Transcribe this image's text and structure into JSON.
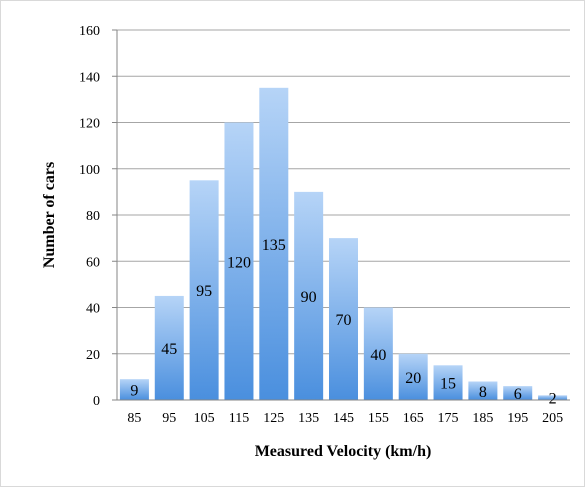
{
  "chart_data": {
    "type": "bar",
    "title": "",
    "xlabel": "Measured Velocity (km/h)",
    "ylabel": "Number of cars",
    "categories": [
      "85",
      "95",
      "105",
      "115",
      "125",
      "135",
      "145",
      "155",
      "165",
      "175",
      "185",
      "195",
      "205"
    ],
    "values": [
      9,
      45,
      95,
      120,
      135,
      90,
      70,
      40,
      20,
      15,
      8,
      6,
      2
    ],
    "ylim": [
      0,
      160
    ],
    "yticks": [
      0,
      20,
      40,
      60,
      80,
      100,
      120,
      140,
      160
    ],
    "grid": true,
    "legend": "none",
    "colors": {
      "bar_top": "#b6d4f7",
      "bar_bottom": "#4a8fde",
      "grid": "#a6a6a6",
      "axis": "#868686"
    }
  }
}
